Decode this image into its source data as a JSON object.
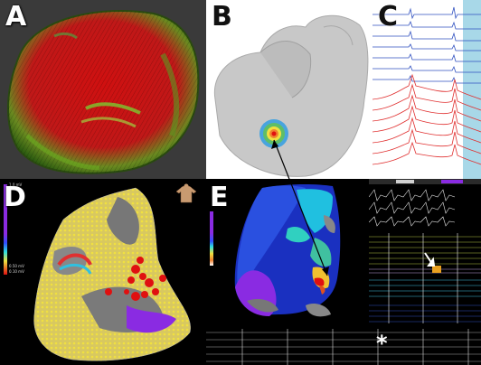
{
  "panels": {
    "a": {
      "label": "A"
    },
    "b": {
      "label": "B"
    },
    "c": {
      "label": "C"
    },
    "d": {
      "label": "D",
      "scale_top": "1.0 mV",
      "scale_mid_a": "0.50 mV",
      "scale_mid_b": "0.10 mV"
    },
    "e": {
      "label": "E"
    }
  },
  "annotations": {
    "asterisk": "*"
  },
  "colors": {
    "scar_red": "#e01010",
    "voltage_purple": "#8a2be2",
    "trace_blue": "#3050c0",
    "trace_red": "#e03030",
    "highlight_cyan": "#a8d8e8"
  },
  "icons": {
    "arrow": "double-arrow",
    "torso": "torso-icon"
  }
}
